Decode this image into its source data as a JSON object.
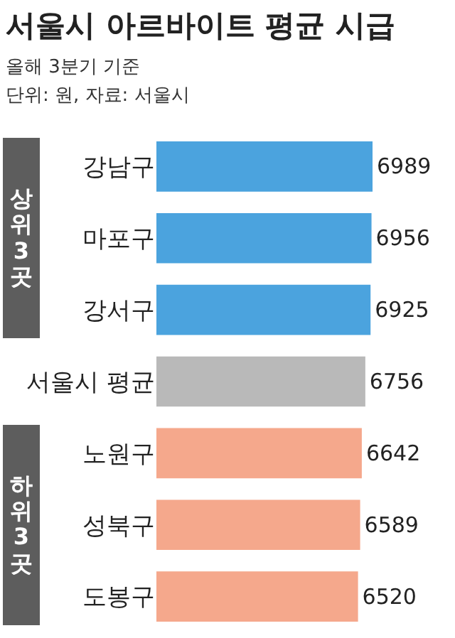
{
  "chart_data": {
    "type": "bar",
    "orientation": "horizontal",
    "title": "서울시 아르바이트 평균 시급",
    "subtitle": "올해 3분기 기준",
    "annotations": [
      "단위: 원, 자료: 서울시",
      "상위 3곳",
      "하위 3곳"
    ],
    "categories": [
      "강남구",
      "마포구",
      "강서구",
      "서울시 평균",
      "노원구",
      "성북구",
      "도봉구"
    ],
    "values": [
      6989,
      6956,
      6925,
      6756,
      6642,
      6589,
      6520
    ],
    "colors": [
      "#4ba3de",
      "#4ba3de",
      "#4ba3de",
      "#b9b9b9",
      "#f5a88c",
      "#f5a88c",
      "#f5a88c"
    ],
    "data_labels": true,
    "tick_labels": "y",
    "grid": false,
    "legend": false
  }
}
